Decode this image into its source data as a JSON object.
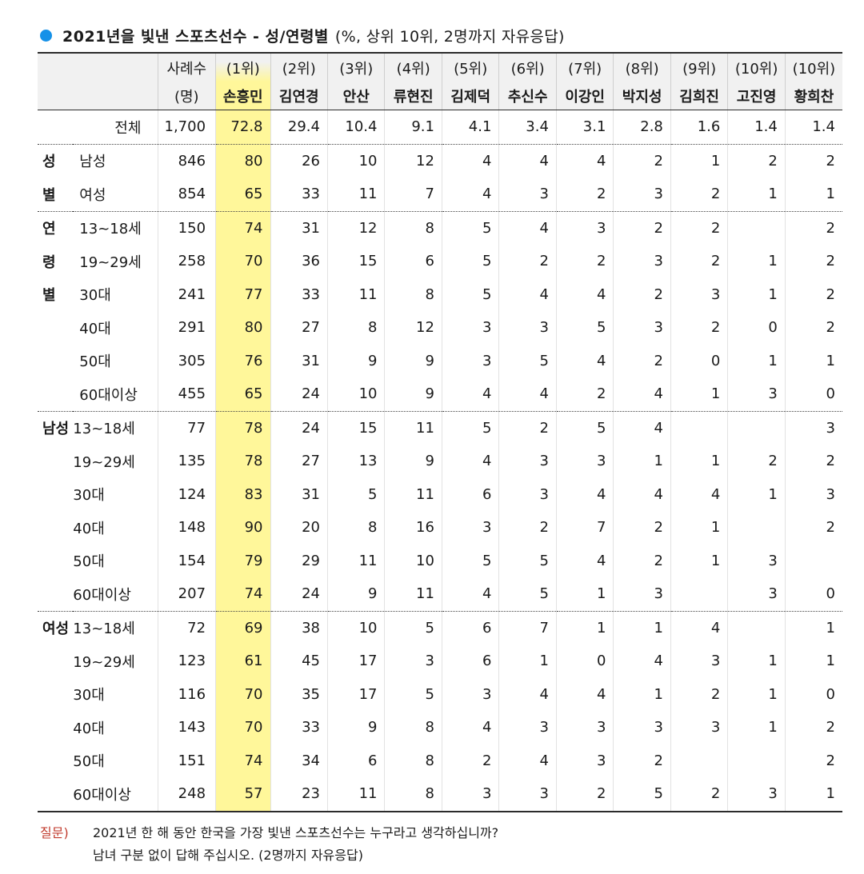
{
  "title": {
    "main": "2021년을 빛낸 스포츠선수 - 성/연령별",
    "sub": "(%, 상위 10위, 2명까지 자유응답)"
  },
  "header": {
    "n_label": "사례수",
    "n_unit": "(명)",
    "ranks": [
      "(1위)",
      "(2위)",
      "(3위)",
      "(4위)",
      "(5위)",
      "(6위)",
      "(7위)",
      "(8위)",
      "(9위)",
      "(10위)",
      "(10위)"
    ],
    "names": [
      "손흥민",
      "김연경",
      "안산",
      "류현진",
      "김제덕",
      "추신수",
      "이강인",
      "박지성",
      "김희진",
      "고진영",
      "황희찬"
    ]
  },
  "rows": [
    {
      "seg": "",
      "label": "전체",
      "n": "1,700",
      "values": [
        "72.8",
        "29.4",
        "10.4",
        "9.1",
        "4.1",
        "3.4",
        "3.1",
        "2.8",
        "1.6",
        "1.4",
        "1.4"
      ]
    },
    {
      "seg": "성",
      "label": "남성",
      "n": "846",
      "values": [
        "80",
        "26",
        "10",
        "12",
        "4",
        "4",
        "4",
        "2",
        "1",
        "2",
        "2"
      ]
    },
    {
      "seg": "별",
      "label": "여성",
      "n": "854",
      "values": [
        "65",
        "33",
        "11",
        "7",
        "4",
        "3",
        "2",
        "3",
        "2",
        "1",
        "1"
      ]
    },
    {
      "seg": "연",
      "label": "13~18세",
      "n": "150",
      "values": [
        "74",
        "31",
        "12",
        "8",
        "5",
        "4",
        "3",
        "2",
        "2",
        "",
        "2"
      ]
    },
    {
      "seg": "령",
      "label": "19~29세",
      "n": "258",
      "values": [
        "70",
        "36",
        "15",
        "6",
        "5",
        "2",
        "2",
        "3",
        "2",
        "1",
        "2"
      ]
    },
    {
      "seg": "별",
      "label": "30대",
      "n": "241",
      "values": [
        "77",
        "33",
        "11",
        "8",
        "5",
        "4",
        "4",
        "2",
        "3",
        "1",
        "2"
      ]
    },
    {
      "seg": "",
      "label": "40대",
      "n": "291",
      "values": [
        "80",
        "27",
        "8",
        "12",
        "3",
        "3",
        "5",
        "3",
        "2",
        "0",
        "2"
      ]
    },
    {
      "seg": "",
      "label": "50대",
      "n": "305",
      "values": [
        "76",
        "31",
        "9",
        "9",
        "3",
        "5",
        "4",
        "2",
        "0",
        "1",
        "1"
      ]
    },
    {
      "seg": "",
      "label": "60대이상",
      "n": "455",
      "values": [
        "65",
        "24",
        "10",
        "9",
        "4",
        "4",
        "2",
        "4",
        "1",
        "3",
        "0"
      ]
    },
    {
      "seg": "남성",
      "label": "13~18세",
      "n": "77",
      "values": [
        "78",
        "24",
        "15",
        "11",
        "5",
        "2",
        "5",
        "4",
        "",
        "",
        "3"
      ]
    },
    {
      "seg": "",
      "label": "19~29세",
      "n": "135",
      "values": [
        "78",
        "27",
        "13",
        "9",
        "4",
        "3",
        "3",
        "1",
        "1",
        "2",
        "2"
      ]
    },
    {
      "seg": "",
      "label": "30대",
      "n": "124",
      "values": [
        "83",
        "31",
        "5",
        "11",
        "6",
        "3",
        "4",
        "4",
        "4",
        "1",
        "3"
      ]
    },
    {
      "seg": "",
      "label": "40대",
      "n": "148",
      "values": [
        "90",
        "20",
        "8",
        "16",
        "3",
        "2",
        "7",
        "2",
        "1",
        "",
        "2"
      ]
    },
    {
      "seg": "",
      "label": "50대",
      "n": "154",
      "values": [
        "79",
        "29",
        "11",
        "10",
        "5",
        "5",
        "4",
        "2",
        "1",
        "3",
        ""
      ]
    },
    {
      "seg": "",
      "label": "60대이상",
      "n": "207",
      "values": [
        "74",
        "24",
        "9",
        "11",
        "4",
        "5",
        "1",
        "3",
        "",
        "3",
        "0"
      ]
    },
    {
      "seg": "여성",
      "label": "13~18세",
      "n": "72",
      "values": [
        "69",
        "38",
        "10",
        "5",
        "6",
        "7",
        "1",
        "1",
        "4",
        "",
        "1"
      ]
    },
    {
      "seg": "",
      "label": "19~29세",
      "n": "123",
      "values": [
        "61",
        "45",
        "17",
        "3",
        "6",
        "1",
        "0",
        "4",
        "3",
        "1",
        "1"
      ]
    },
    {
      "seg": "",
      "label": "30대",
      "n": "116",
      "values": [
        "70",
        "35",
        "17",
        "5",
        "3",
        "4",
        "4",
        "1",
        "2",
        "1",
        "0"
      ]
    },
    {
      "seg": "",
      "label": "40대",
      "n": "143",
      "values": [
        "70",
        "33",
        "9",
        "8",
        "4",
        "3",
        "3",
        "3",
        "3",
        "1",
        "2"
      ]
    },
    {
      "seg": "",
      "label": "50대",
      "n": "151",
      "values": [
        "74",
        "34",
        "6",
        "8",
        "2",
        "4",
        "3",
        "2",
        "",
        "",
        "2"
      ]
    },
    {
      "seg": "",
      "label": "60대이상",
      "n": "248",
      "values": [
        "57",
        "23",
        "11",
        "8",
        "3",
        "3",
        "2",
        "5",
        "2",
        "3",
        "1"
      ]
    }
  ],
  "footer": {
    "q_label": "질문)",
    "line1": "2021년 한 해 동안 한국을 가장 빛낸 스포츠선수는 누구라고 생각하십니까?",
    "line2": "남녀 구분 없이 답해 주십시오. (2명까지 자유응답)"
  },
  "colors": {
    "dot": "#1591e8",
    "highlight": "#fff79a",
    "question": "#c0392b",
    "header_bg": "#f1f1f1"
  }
}
